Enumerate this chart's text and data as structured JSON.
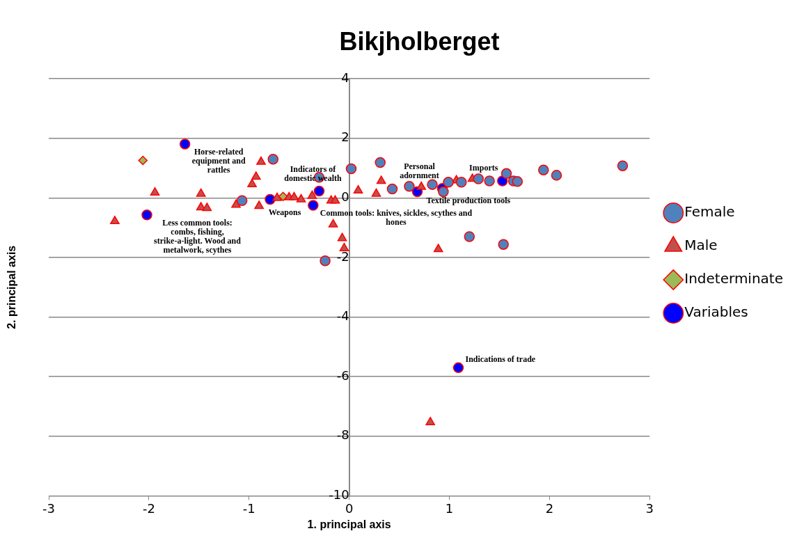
{
  "chart_data": {
    "type": "scatter",
    "title": "Bikjholberget",
    "xlabel": "1. principal axis",
    "ylabel": "2. principal axis",
    "xlim": [
      -3,
      3
    ],
    "xticks": [
      -3,
      -2,
      -1,
      0,
      1,
      2,
      3
    ],
    "ylim": [
      -10,
      4
    ],
    "yticks": [
      -10,
      -8,
      -6,
      -4,
      -2,
      0,
      2,
      4
    ],
    "grid": "y",
    "legend": "right",
    "series": [
      {
        "name": "Female",
        "color": "#4f81bd",
        "marker": "circle",
        "x": [
          -0.76,
          -0.3,
          0.02,
          0.31,
          0.43,
          -0.24,
          -1.07,
          0.6,
          0.83,
          0.99,
          1.12,
          1.29,
          1.4,
          1.57,
          1.64,
          1.68,
          1.94,
          2.07,
          2.73,
          1.2,
          1.54,
          0.94
        ],
        "values": [
          1.3,
          0.69,
          0.98,
          1.19,
          0.3,
          -2.11,
          -0.09,
          0.39,
          0.45,
          0.53,
          0.53,
          0.64,
          0.57,
          0.82,
          0.57,
          0.55,
          0.94,
          0.76,
          1.08,
          -1.3,
          -1.56,
          0.21
        ]
      },
      {
        "name": "Male",
        "color": "#c0504d",
        "marker": "triangle",
        "x": [
          -2.34,
          -1.94,
          -1.48,
          -1.48,
          -1.42,
          -1.13,
          -0.9,
          -0.97,
          -0.93,
          -0.88,
          -0.72,
          -0.6,
          -0.55,
          -0.48,
          -0.37,
          -0.18,
          -0.14,
          -0.16,
          -0.07,
          -0.05,
          0.09,
          0.32,
          0.27,
          0.72,
          1.07,
          1.23,
          0.89,
          0.81
        ],
        "values": [
          -0.78,
          0.18,
          0.14,
          -0.32,
          -0.34,
          -0.23,
          -0.27,
          0.46,
          0.71,
          1.21,
          0.0,
          0.02,
          0.02,
          -0.05,
          0.07,
          -0.09,
          -0.09,
          -0.89,
          -1.35,
          -1.69,
          0.25,
          0.57,
          0.14,
          0.37,
          0.59,
          0.64,
          -1.72,
          -7.53
        ]
      },
      {
        "name": "Indeterminate",
        "color": "#9bbb59",
        "marker": "diamond",
        "x": [
          -2.06,
          -0.66
        ],
        "values": [
          1.26,
          0.05
        ]
      },
      {
        "name": "Variables",
        "color": "#0000ff",
        "marker": "circle",
        "x": [
          -1.64,
          -2.02,
          -0.79,
          -0.3,
          -0.36,
          0.68,
          0.93,
          1.53,
          1.09
        ],
        "values": [
          1.81,
          -0.57,
          -0.05,
          0.23,
          -0.25,
          0.21,
          0.32,
          0.57,
          -5.7
        ]
      }
    ],
    "annotations": [
      {
        "text": "Horse-related equipment and rattles",
        "x": -1.64,
        "y": 1.81
      },
      {
        "text": "Less common tools: combs, fishing, strike-a-light. Wood and metalwork, scythes",
        "x": -2.02,
        "y": -0.57
      },
      {
        "text": "Weapons",
        "x": -0.79,
        "y": -0.05
      },
      {
        "text": "Indicators of domestic wealth",
        "x": -0.3,
        "y": 0.23
      },
      {
        "text": "Common tools: knives, sickles, scythes and hones",
        "x": -0.36,
        "y": -0.25
      },
      {
        "text": "Textile production tools",
        "x": 0.68,
        "y": 0.21
      },
      {
        "text": "Personal adornment",
        "x": 0.93,
        "y": 0.32
      },
      {
        "text": "Imports",
        "x": 1.53,
        "y": 0.57
      },
      {
        "text": "Indications of trade",
        "x": 1.09,
        "y": -5.7
      }
    ]
  }
}
